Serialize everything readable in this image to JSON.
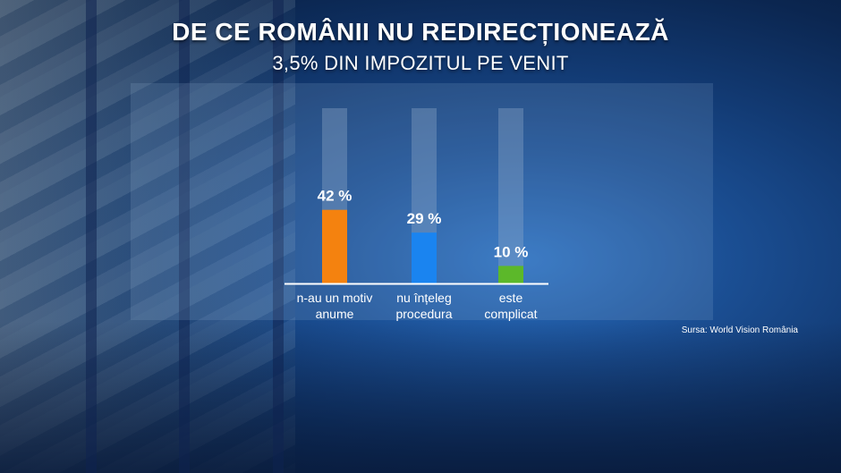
{
  "title": "DE CE ROMÂNII NU REDIRECȚIONEAZĂ",
  "subtitle": "3,5% DIN IMPOZITUL PE VENIT",
  "source": "Sursa: World Vision România",
  "chart_data": {
    "type": "bar",
    "categories": [
      [
        "n-au un motiv",
        "anume"
      ],
      [
        "nu înțeleg",
        "procedura"
      ],
      [
        "este",
        "complicat"
      ]
    ],
    "values": [
      42,
      29,
      10
    ],
    "value_labels": [
      "42 %",
      "29 %",
      "10 %"
    ],
    "colors": [
      "#f4820f",
      "#1a84f0",
      "#5cb82a"
    ],
    "track_color": "#8fa9c8",
    "ylim": [
      0,
      100
    ],
    "grid": false,
    "legend": "none"
  }
}
